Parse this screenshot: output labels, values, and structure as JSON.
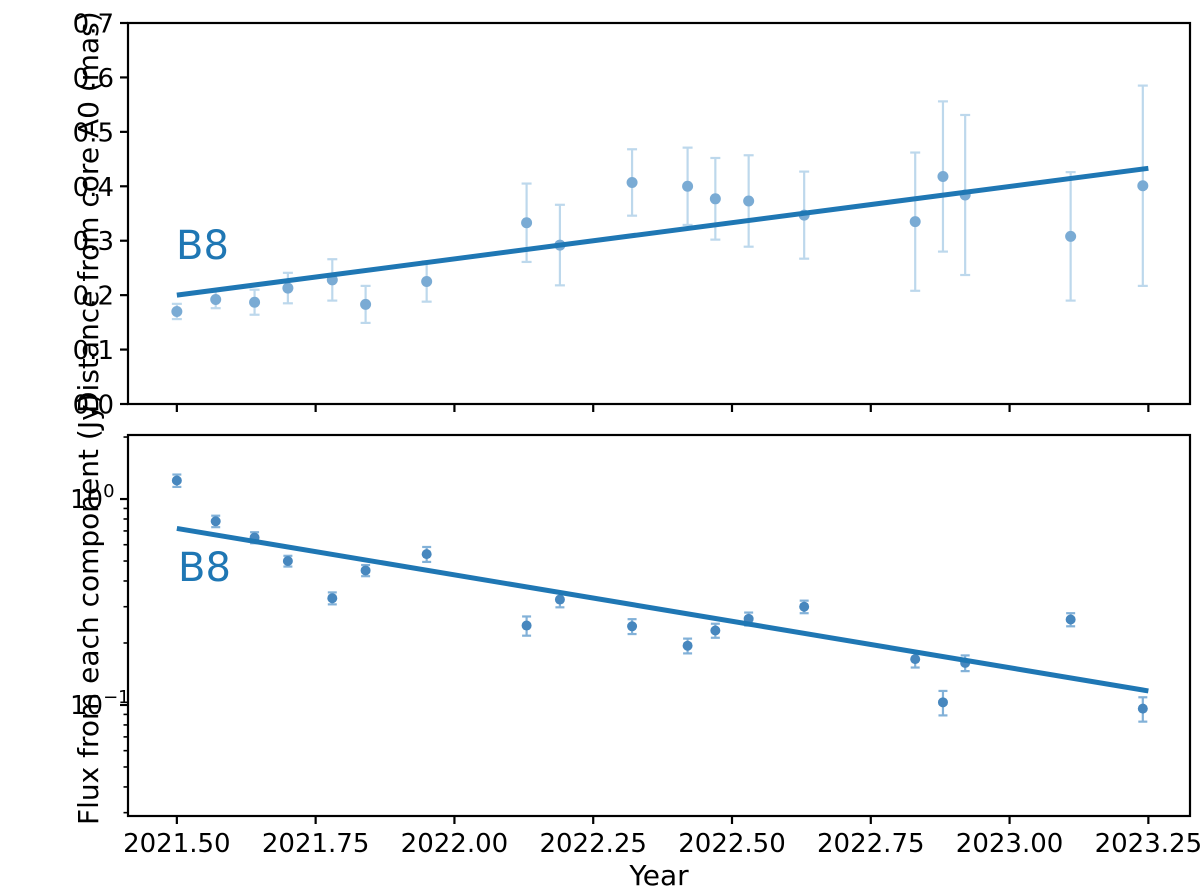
{
  "figure": {
    "background": "#ffffff",
    "accent_color": "#1f77b4",
    "spine_color": "#000000",
    "top_panel_marker_color": "#7aabd4",
    "top_panel_error_color": "#bdd8ec",
    "bottom_panel_marker_color": "#4787be",
    "bottom_panel_error_color": "#82b1d8"
  },
  "shared_x": {
    "xlabel": "Year",
    "xlim": [
      2021.412,
      2023.325
    ],
    "xtick_values": [
      2021.5,
      2021.75,
      2022.0,
      2022.25,
      2022.5,
      2022.75,
      2023.0,
      2023.25
    ],
    "xtick_labels": [
      "2021.50",
      "2021.75",
      "2022.00",
      "2022.25",
      "2022.50",
      "2022.75",
      "2023.00",
      "2023.25"
    ]
  },
  "chart_data": [
    {
      "id": "distance-vs-year",
      "type": "scatter",
      "title": "",
      "ylabel": "Distance from core A0 (mas)",
      "xlabel": "",
      "yscale": "linear",
      "ylim": [
        0.0,
        0.7
      ],
      "grid": false,
      "legend": "none",
      "annotation": {
        "text": "B8"
      },
      "ytick_values": [
        0.0,
        0.1,
        0.2,
        0.3,
        0.4,
        0.5,
        0.6,
        0.7
      ],
      "ytick_labels": [
        "0.0",
        "0.1",
        "0.2",
        "0.3",
        "0.4",
        "0.5",
        "0.6",
        "0.7"
      ],
      "x": [
        2021.5,
        2021.57,
        2021.64,
        2021.7,
        2021.78,
        2021.84,
        2021.95,
        2022.13,
        2022.19,
        2022.32,
        2022.42,
        2022.47,
        2022.53,
        2022.63,
        2022.83,
        2022.88,
        2022.92,
        2023.11,
        2023.24
      ],
      "y": [
        0.17,
        0.192,
        0.187,
        0.213,
        0.228,
        0.183,
        0.225,
        0.333,
        0.292,
        0.407,
        0.4,
        0.377,
        0.373,
        0.347,
        0.335,
        0.418,
        0.384,
        0.308,
        0.401
      ],
      "yerr": [
        0.014,
        0.016,
        0.023,
        0.028,
        0.038,
        0.034,
        0.037,
        0.072,
        0.074,
        0.061,
        0.071,
        0.075,
        0.084,
        0.08,
        0.127,
        0.138,
        0.147,
        0.118,
        0.184
      ],
      "fit_line": {
        "x": [
          2021.5,
          2023.25
        ],
        "y": [
          0.2,
          0.433
        ]
      }
    },
    {
      "id": "flux-vs-year",
      "type": "scatter",
      "title": "",
      "ylabel": "Flux from each component (Jy)",
      "xlabel": "Year",
      "yscale": "log",
      "ylim": [
        0.0289,
        2.046
      ],
      "grid": false,
      "legend": "none",
      "annotation": {
        "text": "B8"
      },
      "ytick_values": [
        1.0,
        0.1
      ],
      "ytick_exponent_labels": [
        {
          "value": 1.0,
          "base": "10",
          "exp": "0"
        },
        {
          "value": 0.1,
          "base": "10",
          "exp": "−1"
        }
      ],
      "minor_tick_values": [
        0.03,
        0.04,
        0.05,
        0.06,
        0.07,
        0.08,
        0.09,
        0.2,
        0.3,
        0.4,
        0.5,
        0.6,
        0.7,
        0.8,
        0.9,
        2.0
      ],
      "x": [
        2021.5,
        2021.57,
        2021.64,
        2021.7,
        2021.78,
        2021.84,
        2021.95,
        2022.13,
        2022.19,
        2022.32,
        2022.42,
        2022.47,
        2022.53,
        2022.63,
        2022.83,
        2022.88,
        2022.92,
        2023.11,
        2023.24
      ],
      "y": [
        1.23,
        0.78,
        0.65,
        0.5,
        0.33,
        0.45,
        0.54,
        0.243,
        0.325,
        0.241,
        0.194,
        0.23,
        0.262,
        0.3,
        0.167,
        0.103,
        0.16,
        0.26,
        0.096
      ],
      "yerr": [
        0.085,
        0.05,
        0.04,
        0.03,
        0.022,
        0.028,
        0.045,
        0.026,
        0.027,
        0.02,
        0.016,
        0.018,
        0.019,
        0.021,
        0.015,
        0.014,
        0.014,
        0.019,
        0.013
      ],
      "fit_line": {
        "x": [
          2021.5,
          2023.25
        ],
        "y": [
          0.72,
          0.117
        ]
      }
    }
  ]
}
